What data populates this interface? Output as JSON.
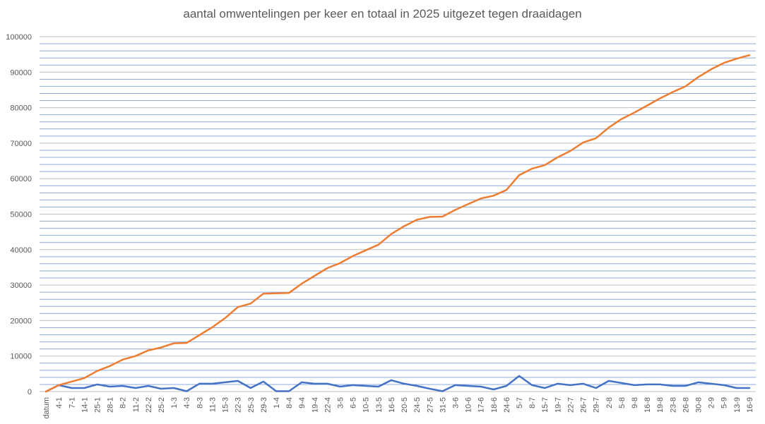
{
  "colors": {
    "grid": "#8EA9DB",
    "axis": "#BFBFBF",
    "series_per_turn": "#4472C4",
    "series_total": "#ED7D31",
    "text": "#595959"
  },
  "chart_data": {
    "type": "line",
    "title": "aantal omwentelingen per keer en totaal in 2025 uitgezet tegen draaidagen",
    "xlabel": "",
    "ylabel": "",
    "ylim": [
      0,
      100000
    ],
    "y_ticks": [
      "0",
      "10000",
      "20000",
      "30000",
      "40000",
      "50000",
      "60000",
      "70000",
      "80000",
      "90000",
      "100000"
    ],
    "grid": true,
    "categories": [
      "datum",
      "4-1",
      "7-1",
      "14-1",
      "25-1",
      "28-1",
      "8-2",
      "11-2",
      "22-2",
      "25-2",
      "1-3",
      "4-3",
      "8-3",
      "11-3",
      "15-3",
      "22-3",
      "25-3",
      "29-3",
      "1-4",
      "8-4",
      "9-4",
      "19-4",
      "22-4",
      "3-5",
      "6-5",
      "10-5",
      "13-5",
      "16-5",
      "20-5",
      "24-5",
      "27-5",
      "31-5",
      "3-6",
      "10-6",
      "17-6",
      "18-6",
      "24-6",
      "5-7",
      "8-7",
      "15-7",
      "19-7",
      "22-7",
      "26-7",
      "29-7",
      "2-8",
      "5-8",
      "9-8",
      "16-8",
      "19-8",
      "23-8",
      "26-8",
      "30-8",
      "2-9",
      "5-9",
      "13-9",
      "16-9"
    ],
    "series": [
      {
        "values": [
          0,
          1800,
          1000,
          1000,
          2000,
          1400,
          1600,
          1000,
          1600,
          800,
          1000,
          100,
          2200,
          2200,
          2600,
          3000,
          1000,
          2800,
          100,
          100,
          2600,
          2200,
          2200,
          1400,
          1800,
          1600,
          1400,
          3200,
          2200,
          1600,
          800,
          100,
          1800,
          1600,
          1400,
          600,
          1600,
          4400,
          1800,
          1000,
          2200,
          1800,
          2200,
          1000,
          3000,
          2400,
          1800,
          2000,
          2000,
          1600,
          1600,
          2600,
          2200,
          1800,
          1000,
          1000
        ]
      },
      {
        "values": [
          0,
          1800,
          2800,
          3800,
          5800,
          7200,
          9000,
          10000,
          11600,
          12400,
          13600,
          13700,
          15900,
          18100,
          20700,
          23800,
          24800,
          27600,
          27700,
          27800,
          30400,
          32600,
          34800,
          36200,
          38200,
          39800,
          41400,
          44400,
          46600,
          48400,
          49200,
          49300,
          51200,
          52800,
          54400,
          55200,
          56800,
          61000,
          62800,
          63800,
          66000,
          67800,
          70200,
          71400,
          74400,
          76800,
          78600,
          80600,
          82600,
          84400,
          86000,
          88600,
          90800,
          92600,
          93800,
          94800
        ]
      }
    ]
  }
}
